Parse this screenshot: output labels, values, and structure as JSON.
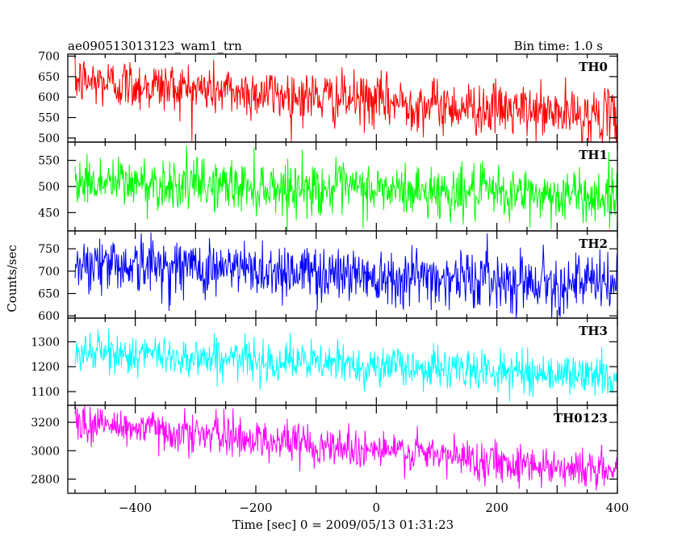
{
  "chart_data": {
    "type": "line",
    "title": "ae090513013123_wam1_trn",
    "bin_time": "Bin time: 1.0 s",
    "xlabel": "Time [sec] 0 = 2009/05/13 01:31:23",
    "ylabel": "Counts/sec",
    "xlim": [
      -512,
      400
    ],
    "xticks": [
      -400,
      -200,
      0,
      200,
      400
    ],
    "series": [
      {
        "name": "TH0",
        "color": "#ff0000",
        "ylim": [
          490,
          705
        ],
        "yticks": [
          500,
          550,
          600,
          650,
          700
        ],
        "start": 640,
        "end": 550,
        "noise": 32,
        "min": 490,
        "max": 705
      },
      {
        "name": "TH1",
        "color": "#00ff00",
        "ylim": [
          415,
          585
        ],
        "yticks": [
          450,
          500,
          550
        ],
        "start": 510,
        "end": 480,
        "noise": 25,
        "min": 415,
        "max": 585
      },
      {
        "name": "TH2",
        "color": "#0000ff",
        "ylim": [
          595,
          790
        ],
        "yticks": [
          600,
          650,
          700,
          750
        ],
        "start": 720,
        "end": 670,
        "noise": 32,
        "min": 595,
        "max": 790
      },
      {
        "name": "TH3",
        "color": "#00ffff",
        "ylim": [
          1045,
          1395
        ],
        "yticks": [
          1100,
          1200,
          1300
        ],
        "start": 1260,
        "end": 1160,
        "noise": 40,
        "min": 1045,
        "max": 1395
      },
      {
        "name": "TH0123",
        "color": "#ff00ff",
        "ylim": [
          2700,
          3320
        ],
        "yticks": [
          2800,
          3000,
          3200
        ],
        "start": 3200,
        "end": 2850,
        "noise": 70,
        "min": 2700,
        "max": 3320
      }
    ]
  }
}
